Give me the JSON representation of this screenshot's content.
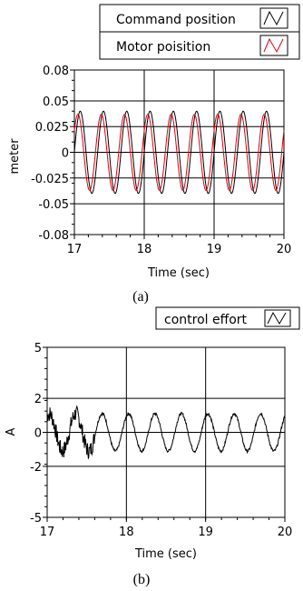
{
  "chart_data": [
    {
      "type": "line",
      "panel_caption": "(a)",
      "xlabel": "Time (sec)",
      "ylabel": "meter",
      "xlim": [
        17,
        20
      ],
      "ylim": [
        -0.08,
        0.08
      ],
      "x_ticks": [
        "17",
        "18",
        "19",
        "20"
      ],
      "y_ticks": [
        "0.08",
        "0.05",
        "0.025",
        "0",
        "-0.025",
        "-0.05",
        "-0.08"
      ],
      "y_tick_values": [
        0.08,
        0.05,
        0.025,
        0,
        -0.025,
        -0.05,
        -0.08
      ],
      "grid": true,
      "legend_position": "top-right",
      "series": [
        {
          "name": "Command position",
          "color": "#000000",
          "amplitude": 0.04,
          "frequency_hz": 3,
          "phase_deg": 0
        },
        {
          "name": "Motor poisition",
          "color": "#e0000f",
          "amplitude": 0.037,
          "frequency_hz": 3,
          "phase_deg": 35
        }
      ]
    },
    {
      "type": "line",
      "panel_caption": "(b)",
      "xlabel": "Time (sec)",
      "ylabel": "A",
      "xlim": [
        17,
        20
      ],
      "ylim": [
        -5,
        5
      ],
      "x_ticks": [
        "17",
        "18",
        "19",
        "20"
      ],
      "y_ticks": [
        "5",
        "2",
        "0",
        "-2",
        "-5"
      ],
      "y_tick_values": [
        5,
        2,
        0,
        -2,
        -5
      ],
      "grid": true,
      "legend_position": "top-right",
      "series": [
        {
          "name": "control effort",
          "color": "#000000",
          "amplitude": 1.1,
          "frequency_hz": 3,
          "phase_deg": 60,
          "noise_until_x": 17.6
        }
      ]
    }
  ]
}
